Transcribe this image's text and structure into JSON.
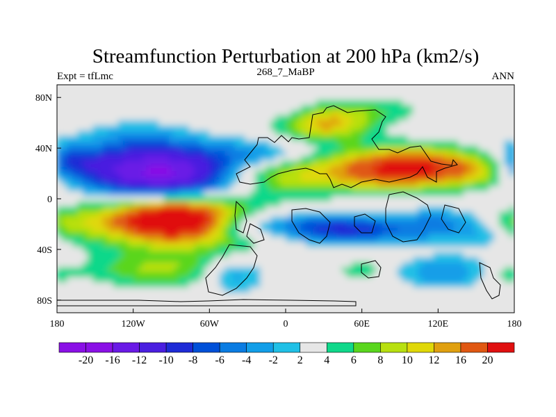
{
  "chart_data": {
    "type": "heatmap",
    "title": "Streamfunction Perturbation at 200 hPa (km2/s)",
    "left_label": "Expt = tfLmc",
    "center_label": "268_7_MaBP",
    "right_label": "ANN",
    "x_ticks": [
      "180",
      "120W",
      "60W",
      "0",
      "60E",
      "120E",
      "180"
    ],
    "y_ticks": [
      "80N",
      "40N",
      "0",
      "40S",
      "80S"
    ],
    "x_range": [
      -180,
      180
    ],
    "y_range": [
      -90,
      90
    ],
    "colorbar": {
      "labels": [
        "-20",
        "-16",
        "-12",
        "-10",
        "-8",
        "-6",
        "-4",
        "-2",
        "2",
        "4",
        "6",
        "8",
        "10",
        "12",
        "16",
        "20"
      ],
      "colors": [
        "#8a10e6",
        "#6a1ae6",
        "#4a1fe0",
        "#1e2bd6",
        "#0050d8",
        "#0a7ce2",
        "#129ee8",
        "#20c0e6",
        "#e6e6e6",
        "#10d88a",
        "#5ad61e",
        "#b8e010",
        "#e0d808",
        "#e0a010",
        "#e05812",
        "#e01010"
      ]
    },
    "features": [
      {
        "name": "negative low north pacific",
        "lon": -98,
        "lat": 20,
        "peak": -21
      },
      {
        "name": "positive high south pacific",
        "lon": -90,
        "lat": -15,
        "peak": 20
      },
      {
        "name": "positive high tibet",
        "lon": 98,
        "lat": 25,
        "peak": 16
      },
      {
        "name": "positive high eurasia north",
        "lon": 30,
        "lat": 60,
        "peak": 11
      },
      {
        "name": "negative low indian ocean",
        "lon": 50,
        "lat": -25,
        "peak": -10
      },
      {
        "name": "negative low south indian",
        "lon": 125,
        "lat": -58,
        "peak": -6
      }
    ]
  }
}
